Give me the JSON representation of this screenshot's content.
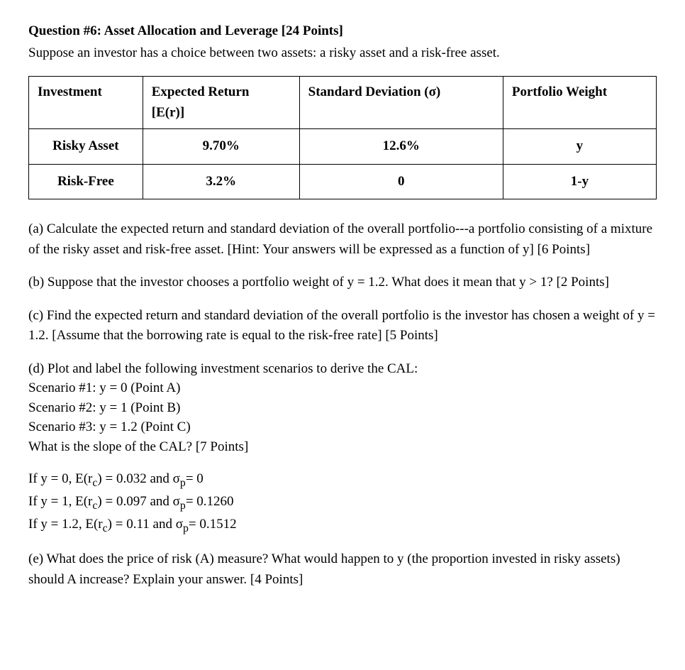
{
  "heading": "Question #6:  Asset Allocation and Leverage [24 Points]",
  "intro": "Suppose an investor has a choice between two assets: a risky asset and a risk-free asset.",
  "table": {
    "headers": {
      "investment": "Investment",
      "expected_return_line1": "Expected Return",
      "expected_return_line2": "[E(r)]",
      "std_dev": "Standard Deviation (σ)",
      "weight": "Portfolio Weight"
    },
    "rows": [
      {
        "investment": "Risky Asset",
        "expected_return": "9.70%",
        "std_dev": "12.6%",
        "weight": "y"
      },
      {
        "investment": "Risk-Free",
        "expected_return": "3.2%",
        "std_dev": "0",
        "weight": "1-y"
      }
    ]
  },
  "part_a": "(a)  Calculate the expected return and standard deviation of the overall portfolio---a portfolio consisting of a mixture of the risky asset and risk-free asset. [Hint:  Your answers will be expressed as a function of y] [6 Points]",
  "part_b": "(b)  Suppose that the investor chooses a portfolio weight of y = 1.2.  What does it mean that y > 1?      [2 Points]",
  "part_c": " (c)  Find the expected return and standard deviation of the overall portfolio is the investor has chosen a weight of y = 1.2.  [Assume that the borrowing rate is equal to the risk-free rate] [5 Points]",
  "part_d": {
    "intro": "(d)  Plot and label the following investment scenarios to derive the CAL:",
    "scenario1": "Scenario #1: y = 0 (Point A)",
    "scenario2": "Scenario #2: y = 1 (Point B)",
    "scenario3": "Scenario #3: y = 1.2  (Point C)",
    "slope_q": "What is the slope of the CAL? [7 Points]"
  },
  "calcs": {
    "line1_a": "If y = 0, E(r",
    "line1_b": ") = 0.032 and σ",
    "line1_c": "= 0",
    "line2_a": "If y = 1, E(r",
    "line2_b": ") = 0.097 and σ",
    "line2_c": "= 0.1260",
    "line3_a": "If y = 1.2, E(r",
    "line3_b": ") = 0.11 and σ",
    "line3_c": "= 0.1512",
    "sub_c": "c",
    "sub_p": "p"
  },
  "part_e": " (e)  What does the price of risk (A) measure?  What would happen to y (the proportion invested in risky assets) should A increase?  Explain your answer. [4 Points]"
}
